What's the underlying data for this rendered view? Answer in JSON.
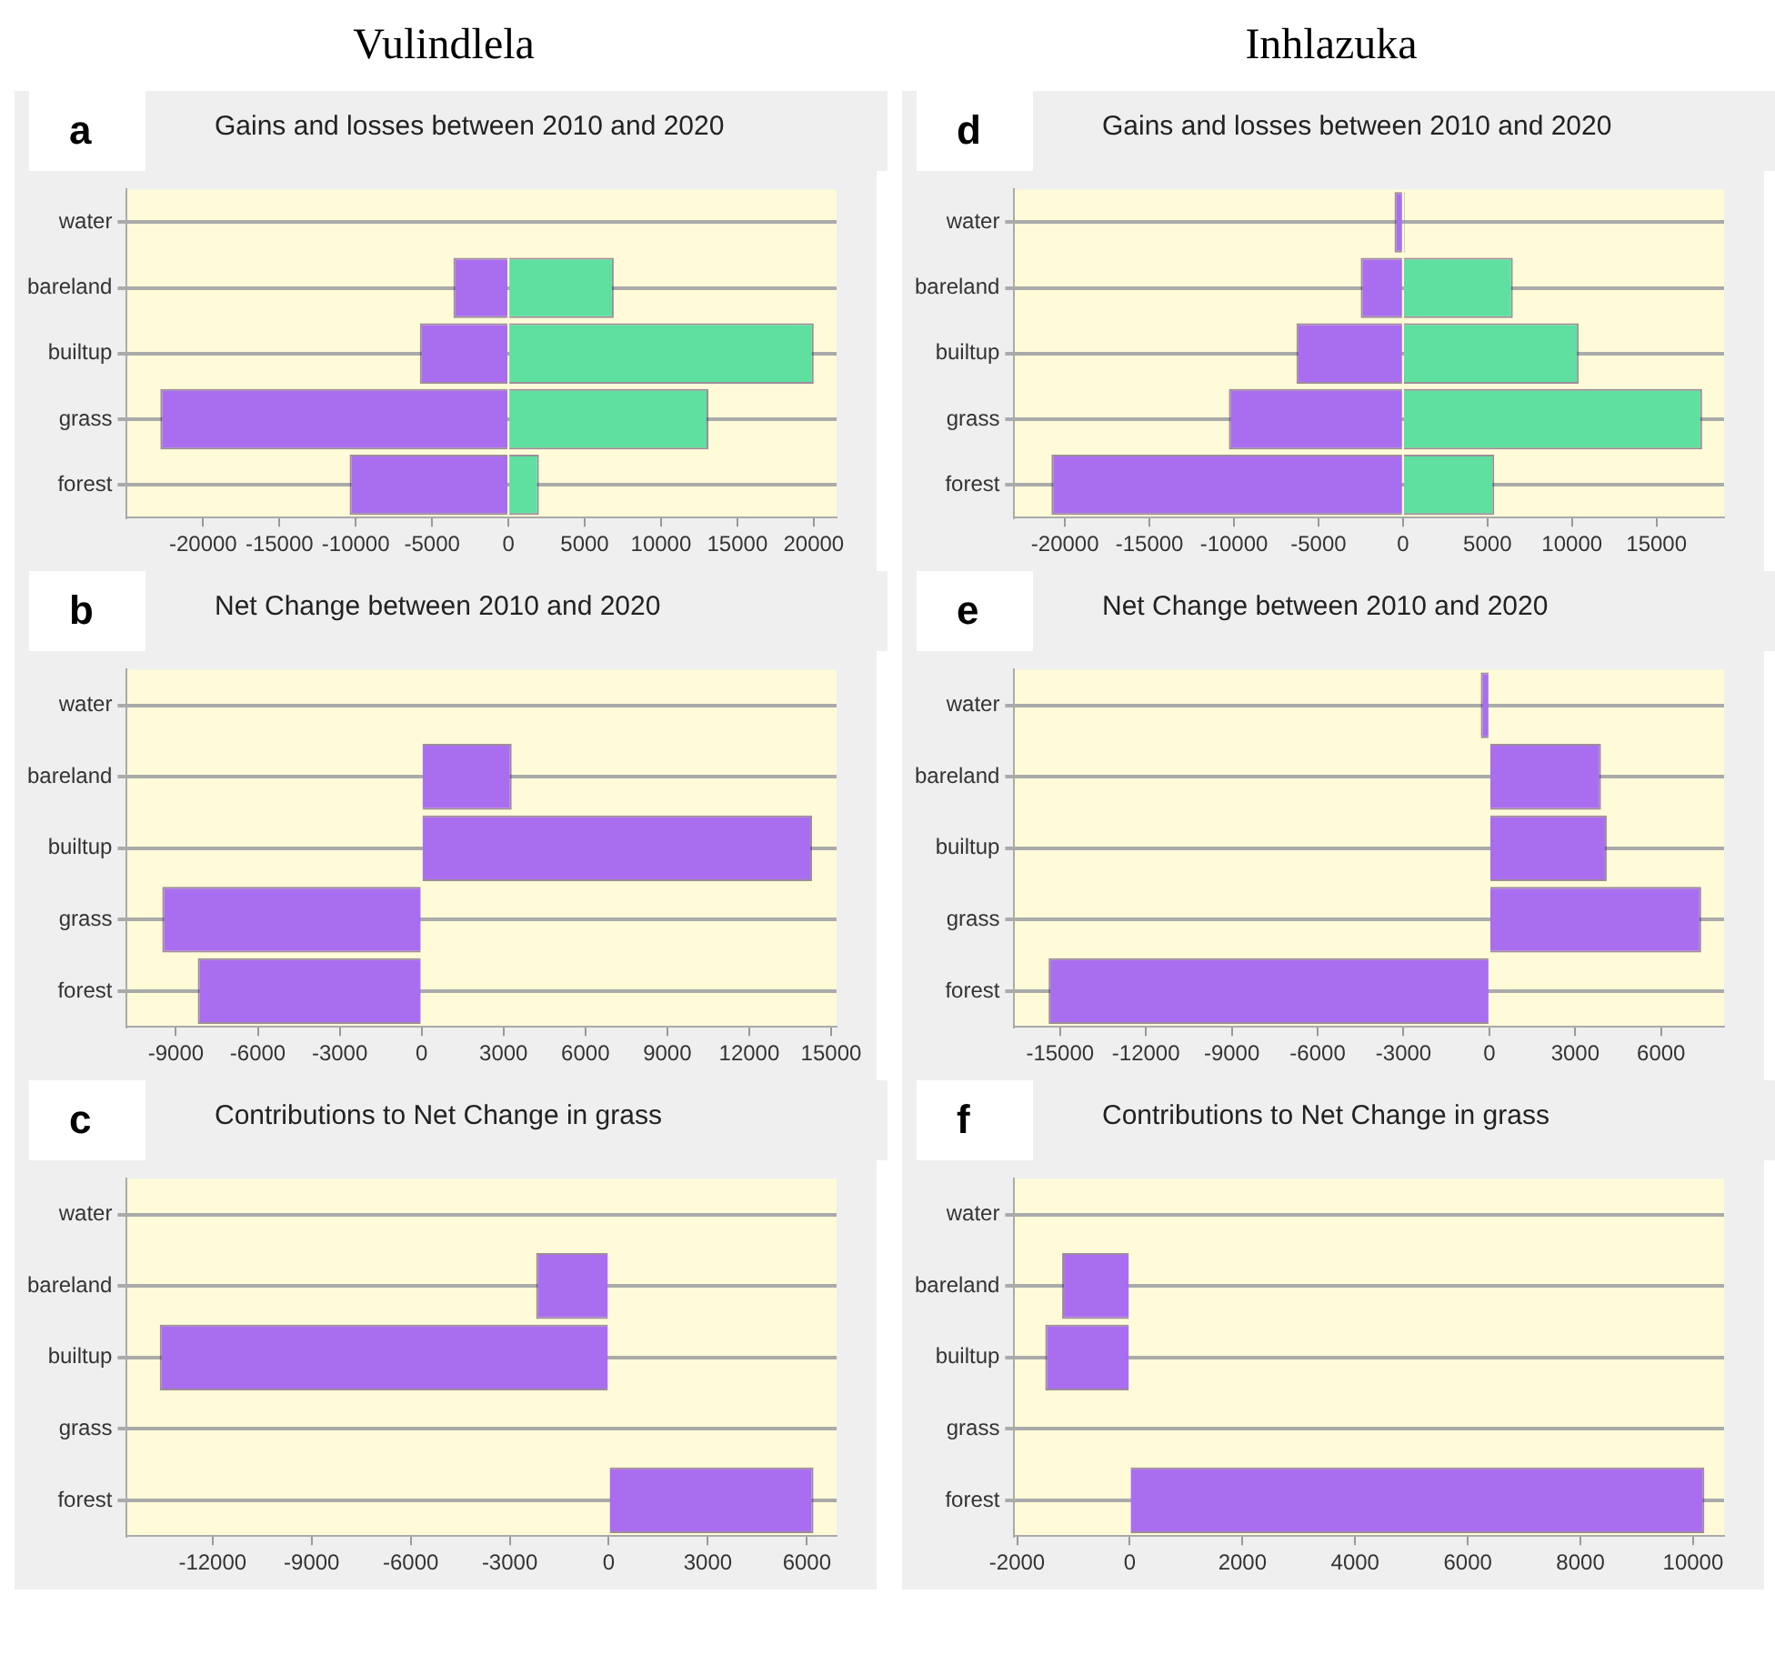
{
  "chart_data": [
    {
      "type": "bar",
      "orientation": "horizontal",
      "stacked": true,
      "title": "Gains and losses between 2010 and 2020",
      "annotations": [
        "Vulindlela",
        "a"
      ],
      "categories": [
        "water",
        "bareland",
        "builtup",
        "grass",
        "forest"
      ],
      "series": [
        {
          "color": "#a96ef0",
          "values": [
            0,
            -3600,
            -5800,
            -22800,
            -10400
          ]
        },
        {
          "color": "#5fe0a0",
          "values": [
            0,
            6900,
            20000,
            13100,
            2000
          ]
        }
      ],
      "xlim": [
        -25000,
        21500
      ],
      "xticks": [
        -20000,
        -15000,
        -10000,
        -5000,
        0,
        5000,
        10000,
        15000,
        20000
      ],
      "grid": "y",
      "legend": false
    },
    {
      "type": "bar",
      "orientation": "horizontal",
      "stacked": true,
      "title": "Gains and losses between 2010 and 2020",
      "annotations": [
        "Inhlazuka",
        "d"
      ],
      "categories": [
        "water",
        "bareland",
        "builtup",
        "grass",
        "forest"
      ],
      "series": [
        {
          "color": "#a96ef0",
          "values": [
            -500,
            -2500,
            -6300,
            -10300,
            -20800
          ]
        },
        {
          "color": "#5fe0a0",
          "values": [
            100,
            6500,
            10400,
            17700,
            5400
          ]
        }
      ],
      "xlim": [
        -23000,
        19000
      ],
      "xticks": [
        -20000,
        -15000,
        -10000,
        -5000,
        0,
        5000,
        10000,
        15000
      ],
      "grid": "y",
      "legend": false
    },
    {
      "type": "bar",
      "orientation": "horizontal",
      "title": "Net Change between 2010 and 2020",
      "annotations": [
        "b"
      ],
      "categories": [
        "water",
        "bareland",
        "builtup",
        "grass",
        "forest"
      ],
      "series": [
        {
          "color": "#a96ef0",
          "values": [
            0,
            3300,
            14300,
            -9500,
            -8200
          ]
        }
      ],
      "xlim": [
        -10800,
        15200
      ],
      "xticks": [
        -9000,
        -6000,
        -3000,
        0,
        3000,
        6000,
        9000,
        12000,
        15000
      ],
      "grid": "y",
      "legend": false
    },
    {
      "type": "bar",
      "orientation": "horizontal",
      "title": "Net Change between 2010 and 2020",
      "annotations": [
        "e"
      ],
      "categories": [
        "water",
        "bareland",
        "builtup",
        "grass",
        "forest"
      ],
      "series": [
        {
          "color": "#a96ef0",
          "values": [
            -300,
            3900,
            4100,
            7400,
            -15400
          ]
        }
      ],
      "xlim": [
        -16600,
        8200
      ],
      "xticks": [
        -15000,
        -12000,
        -9000,
        -6000,
        -3000,
        0,
        3000,
        6000
      ],
      "grid": "y",
      "legend": false
    },
    {
      "type": "bar",
      "orientation": "horizontal",
      "title": "Contributions to Net Change in grass",
      "annotations": [
        "c"
      ],
      "categories": [
        "water",
        "bareland",
        "builtup",
        "grass",
        "forest"
      ],
      "series": [
        {
          "color": "#a96ef0",
          "values": [
            0,
            -2200,
            -13600,
            0,
            6200
          ]
        }
      ],
      "xlim": [
        -14600,
        6900
      ],
      "xticks": [
        -12000,
        -9000,
        -6000,
        -3000,
        0,
        3000,
        6000
      ],
      "grid": "y",
      "legend": false
    },
    {
      "type": "bar",
      "orientation": "horizontal",
      "title": "Contributions to Net Change in grass",
      "annotations": [
        "f"
      ],
      "categories": [
        "water",
        "bareland",
        "builtup",
        "grass",
        "forest"
      ],
      "series": [
        {
          "color": "#a96ef0",
          "values": [
            0,
            -1200,
            -1500,
            0,
            10200
          ]
        }
      ],
      "xlim": [
        -2050,
        10550
      ],
      "xticks": [
        -2000,
        0,
        2000,
        4000,
        6000,
        8000,
        10000
      ],
      "grid": "y",
      "legend": false
    }
  ]
}
